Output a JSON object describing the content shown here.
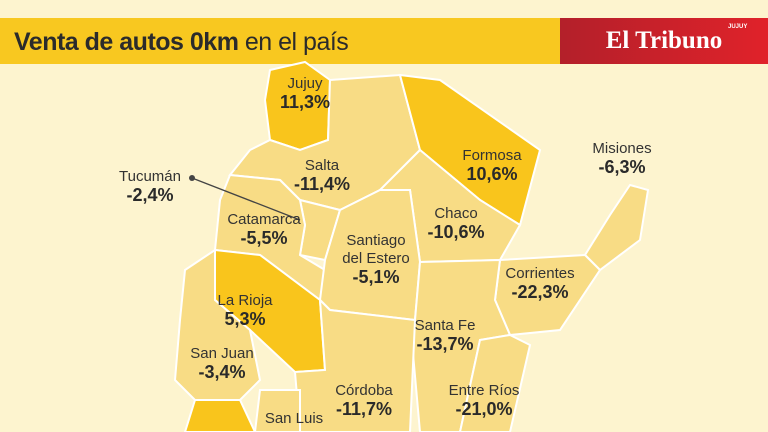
{
  "header": {
    "title_bold": "Venta de autos 0km",
    "title_rest": " en el país",
    "brand": "El Tribuno",
    "brand_small": "JUJUY"
  },
  "colors": {
    "header": "#f8c820",
    "province": "#f8dc85",
    "highlight": "#f9c51c",
    "background": "#fdf4cf",
    "brand": "#d0222a"
  },
  "provinces": [
    {
      "name": "Jujuy",
      "value": "11,3%"
    },
    {
      "name": "Salta",
      "value": "-11,4%"
    },
    {
      "name": "Tucumán",
      "value": "-2,4%"
    },
    {
      "name": "Formosa",
      "value": "10,6%"
    },
    {
      "name": "Misiones",
      "value": "-6,3%"
    },
    {
      "name": "Catamarca",
      "value": "-5,5%"
    },
    {
      "name": "Chaco",
      "value": "-10,6%"
    },
    {
      "name": "Santiago del Estero",
      "value": "-5,1%"
    },
    {
      "name": "Corrientes",
      "value": "-22,3%"
    },
    {
      "name": "La Rioja",
      "value": "5,3%"
    },
    {
      "name": "Santa Fe",
      "value": "-13,7%"
    },
    {
      "name": "San Juan",
      "value": "-3,4%"
    },
    {
      "name": "Córdoba",
      "value": "-11,7%"
    },
    {
      "name": "Entre Ríos",
      "value": "-21,0%"
    },
    {
      "name": "San Luis",
      "value": ""
    }
  ]
}
